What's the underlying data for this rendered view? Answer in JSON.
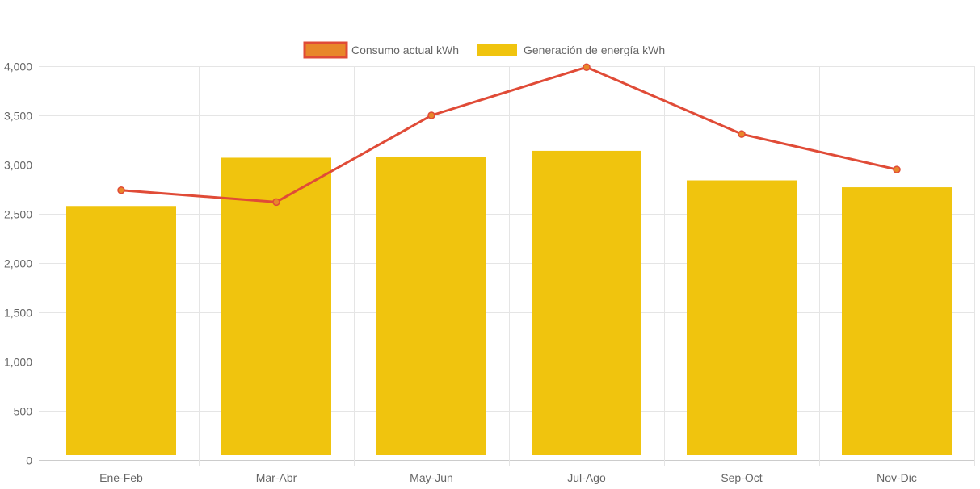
{
  "chart_data": {
    "type": "bar",
    "categories": [
      "Ene-Feb",
      "Mar-Abr",
      "May-Jun",
      "Jul-Ago",
      "Sep-Oct",
      "Nov-Dic"
    ],
    "ylim": [
      0,
      4000
    ],
    "yticks": [
      0,
      500,
      1000,
      1500,
      2000,
      2500,
      3000,
      3500,
      4000
    ],
    "ytick_labels": [
      "0",
      "500",
      "1,000",
      "1,500",
      "2,000",
      "2,500",
      "3,000",
      "3,500",
      "4,000"
    ],
    "grid": true,
    "legend_position": "top-center",
    "series": [
      {
        "name": "Consumo actual kWh",
        "type": "line",
        "color": "#E04B37",
        "point_color": "#E8872A",
        "values": [
          2740,
          2620,
          3500,
          3990,
          3310,
          2950
        ]
      },
      {
        "name": "Generación de energía kWh",
        "type": "bar",
        "color": "#F0C40E",
        "values": [
          2580,
          3070,
          3080,
          3140,
          2840,
          2770
        ]
      }
    ],
    "title": "",
    "xlabel": "",
    "ylabel": ""
  }
}
